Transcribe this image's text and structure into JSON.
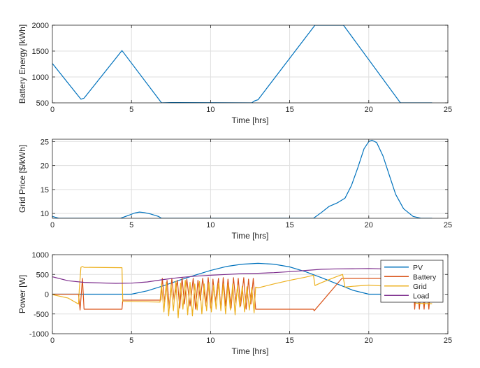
{
  "chart_data": [
    {
      "type": "line",
      "xlabel": "Time [hrs]",
      "ylabel": "Battery Energy [kWh]",
      "xlim": [
        0,
        25
      ],
      "ylim": [
        500,
        2000
      ],
      "xticks": [
        0,
        5,
        10,
        15,
        20,
        25
      ],
      "yticks": [
        500,
        1000,
        1500,
        2000
      ],
      "grid": true,
      "series": [
        {
          "color": "#0072BD",
          "x": [
            0,
            1.8,
            2.0,
            4.4,
            6.9,
            7.5,
            12.6,
            12.8,
            13.0,
            16.6,
            18.4,
            22.0,
            24.0
          ],
          "y": [
            1260,
            570,
            590,
            1510,
            500,
            505,
            500,
            540,
            560,
            2000,
            2000,
            500,
            500
          ]
        }
      ]
    },
    {
      "type": "line",
      "xlabel": "Time [hrs]",
      "ylabel": "Grid Price [$/kWh]",
      "xlim": [
        0,
        25
      ],
      "ylim": [
        9,
        25.5
      ],
      "xticks": [
        0,
        5,
        10,
        15,
        20,
        25
      ],
      "yticks": [
        10,
        15,
        20,
        25
      ],
      "grid": true,
      "series": [
        {
          "color": "#0072BD",
          "x": [
            0,
            0.4,
            4.3,
            4.8,
            5.2,
            5.5,
            5.8,
            6.2,
            6.7,
            6.9,
            16.5,
            17.0,
            17.5,
            18.0,
            18.5,
            18.9,
            19.3,
            19.7,
            20.0,
            20.2,
            20.5,
            20.9,
            21.3,
            21.7,
            22.2,
            22.8,
            23.3,
            24.0
          ],
          "y": [
            9.4,
            9,
            9,
            9.6,
            10.1,
            10.3,
            10.2,
            9.9,
            9.4,
            9,
            9,
            10.2,
            11.5,
            12.2,
            13.2,
            15.8,
            19.5,
            23.5,
            25,
            25.3,
            24.8,
            22,
            18,
            14,
            11,
            9.4,
            9,
            9
          ]
        }
      ]
    },
    {
      "type": "line",
      "xlabel": "Time [hrs]",
      "ylabel": "Power [W]",
      "xlim": [
        0,
        25
      ],
      "ylim": [
        -1000,
        1000
      ],
      "xticks": [
        0,
        5,
        10,
        15,
        20,
        25
      ],
      "yticks": [
        -1000,
        -500,
        0,
        500,
        1000
      ],
      "grid": true,
      "legend": "top-right",
      "series": [
        {
          "name": "PV",
          "color": "#0072BD",
          "x": [
            0,
            5,
            6,
            7,
            8,
            9,
            10,
            11,
            12,
            13,
            14,
            15,
            16,
            17,
            18,
            19,
            20,
            24
          ],
          "y": [
            0,
            0,
            85,
            210,
            350,
            480,
            600,
            700,
            760,
            780,
            760,
            690,
            570,
            420,
            260,
            100,
            0,
            0
          ]
        },
        {
          "name": "Battery",
          "color": "#D95319",
          "x": [
            0,
            1.65,
            1.75,
            1.9,
            2.0,
            4.4,
            4.45,
            6.85,
            6.95,
            7.1,
            7.25,
            7.4,
            7.55,
            7.7,
            7.9,
            8.05,
            8.2,
            8.35,
            8.5,
            8.7,
            8.9,
            9.05,
            9.2,
            9.35,
            9.5,
            9.7,
            9.85,
            10.0,
            10.15,
            10.3,
            10.5,
            10.65,
            10.8,
            10.95,
            11.1,
            11.3,
            11.45,
            11.6,
            11.75,
            11.9,
            12.1,
            12.25,
            12.4,
            12.55,
            12.7,
            12.85,
            16.5,
            16.55,
            18.3,
            18.35,
            22.8,
            22.9,
            23.05,
            23.2,
            23.35,
            23.5,
            23.65,
            23.8,
            23.95
          ],
          "y": [
            0,
            0,
            -400,
            400,
            -380,
            -380,
            -150,
            -150,
            400,
            -200,
            350,
            -350,
            400,
            -150,
            350,
            -350,
            420,
            -250,
            380,
            -300,
            400,
            -380,
            350,
            -150,
            400,
            -300,
            420,
            -350,
            380,
            -200,
            400,
            -380,
            420,
            -300,
            380,
            -350,
            420,
            -220,
            400,
            -300,
            420,
            -380,
            380,
            -250,
            400,
            -380,
            -380,
            -420,
            400,
            400,
            400,
            -380,
            350,
            -380,
            350,
            -380,
            350,
            -380,
            350
          ]
        },
        {
          "name": "Grid",
          "color": "#EDB120",
          "x": [
            0,
            1.0,
            1.65,
            1.7,
            1.8,
            1.9,
            2.0,
            4.4,
            4.45,
            6.8,
            6.9,
            7.05,
            7.2,
            7.35,
            7.5,
            7.65,
            7.8,
            7.95,
            8.1,
            8.25,
            8.4,
            8.55,
            8.7,
            8.85,
            9.0,
            9.15,
            9.3,
            9.45,
            9.6,
            9.75,
            9.9,
            10.05,
            10.2,
            10.35,
            10.5,
            10.65,
            10.8,
            10.95,
            11.1,
            11.25,
            11.4,
            11.55,
            11.7,
            11.85,
            12.0,
            12.15,
            12.3,
            12.45,
            12.6,
            12.75,
            12.85,
            13.0,
            14.0,
            15.0,
            16.0,
            16.5,
            16.6,
            17.0,
            18.0,
            18.35,
            18.5,
            19.0,
            20.0,
            22.0,
            23.0,
            24.0
          ],
          "y": [
            -10,
            -100,
            -250,
            120,
            680,
            700,
            680,
            670,
            -180,
            -200,
            260,
            -450,
            300,
            -550,
            250,
            -420,
            330,
            -600,
            280,
            -380,
            350,
            -520,
            300,
            -550,
            260,
            -400,
            320,
            -500,
            260,
            -420,
            300,
            -450,
            230,
            -380,
            280,
            -420,
            260,
            -500,
            240,
            -400,
            260,
            -520,
            220,
            -330,
            200,
            -450,
            190,
            -400,
            170,
            -470,
            180,
            160,
            260,
            350,
            430,
            480,
            220,
            290,
            450,
            500,
            180,
            200,
            230,
            180,
            -230,
            -240
          ]
        },
        {
          "name": "Load",
          "color": "#7E2F8E",
          "x": [
            0,
            1,
            2,
            3,
            4,
            5,
            6,
            7,
            8,
            9,
            10,
            11,
            12,
            13,
            14,
            15,
            16,
            17,
            18,
            19,
            20,
            21,
            22,
            23,
            24
          ],
          "y": [
            440,
            340,
            300,
            285,
            275,
            280,
            310,
            370,
            420,
            455,
            480,
            500,
            520,
            530,
            545,
            570,
            600,
            630,
            640,
            645,
            650,
            640,
            600,
            500,
            450
          ]
        }
      ]
    }
  ]
}
